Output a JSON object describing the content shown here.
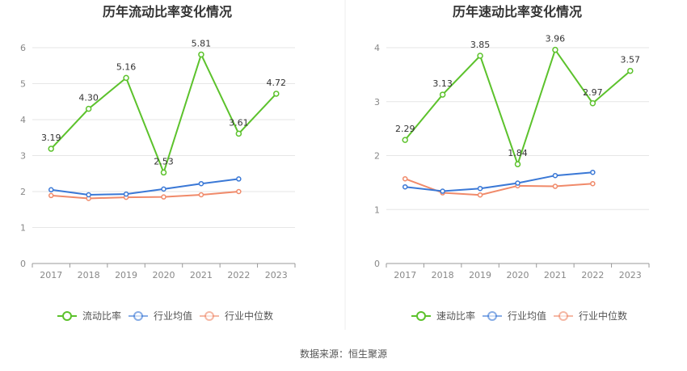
{
  "source_label": "数据来源：恒生聚源",
  "colors": {
    "main": "#5cc22c",
    "avg": "#3a78d6",
    "median": "#f08a6a",
    "grid": "#e6e6e6",
    "axis": "#999999"
  },
  "chart_data": [
    {
      "type": "line",
      "title": "历年流动比率变化情况",
      "categories": [
        "2017",
        "2018",
        "2019",
        "2020",
        "2021",
        "2022",
        "2023"
      ],
      "ylim": [
        0,
        6
      ],
      "yticks": [
        "0",
        "1",
        "2",
        "3",
        "4",
        "5",
        "6"
      ],
      "grid": true,
      "legend_position": "bottom",
      "series": [
        {
          "name": "流动比率",
          "values": [
            3.19,
            4.3,
            5.16,
            2.53,
            5.81,
            3.61,
            4.72
          ],
          "labels": [
            "3.19",
            "4.30",
            "5.16",
            "2.53",
            "5.81",
            "3.61",
            "4.72"
          ]
        },
        {
          "name": "行业均值",
          "values": [
            2.05,
            1.91,
            1.93,
            2.07,
            2.22,
            2.35,
            null
          ]
        },
        {
          "name": "行业中位数",
          "values": [
            1.89,
            1.81,
            1.84,
            1.85,
            1.91,
            2.0,
            null
          ]
        }
      ]
    },
    {
      "type": "line",
      "title": "历年速动比率变化情况",
      "categories": [
        "2017",
        "2018",
        "2019",
        "2020",
        "2021",
        "2022",
        "2023"
      ],
      "ylim": [
        0,
        4
      ],
      "yticks": [
        "0",
        "1",
        "2",
        "3",
        "4"
      ],
      "grid": true,
      "legend_position": "bottom",
      "series": [
        {
          "name": "速动比率",
          "values": [
            2.29,
            3.13,
            3.85,
            1.84,
            3.96,
            2.97,
            3.57
          ],
          "labels": [
            "2.29",
            "3.13",
            "3.85",
            "1.84",
            "3.96",
            "2.97",
            "3.57"
          ]
        },
        {
          "name": "行业均值",
          "values": [
            1.42,
            1.34,
            1.39,
            1.49,
            1.63,
            1.69,
            null
          ]
        },
        {
          "name": "行业中位数",
          "values": [
            1.57,
            1.31,
            1.27,
            1.44,
            1.43,
            1.48,
            null
          ]
        }
      ]
    }
  ]
}
